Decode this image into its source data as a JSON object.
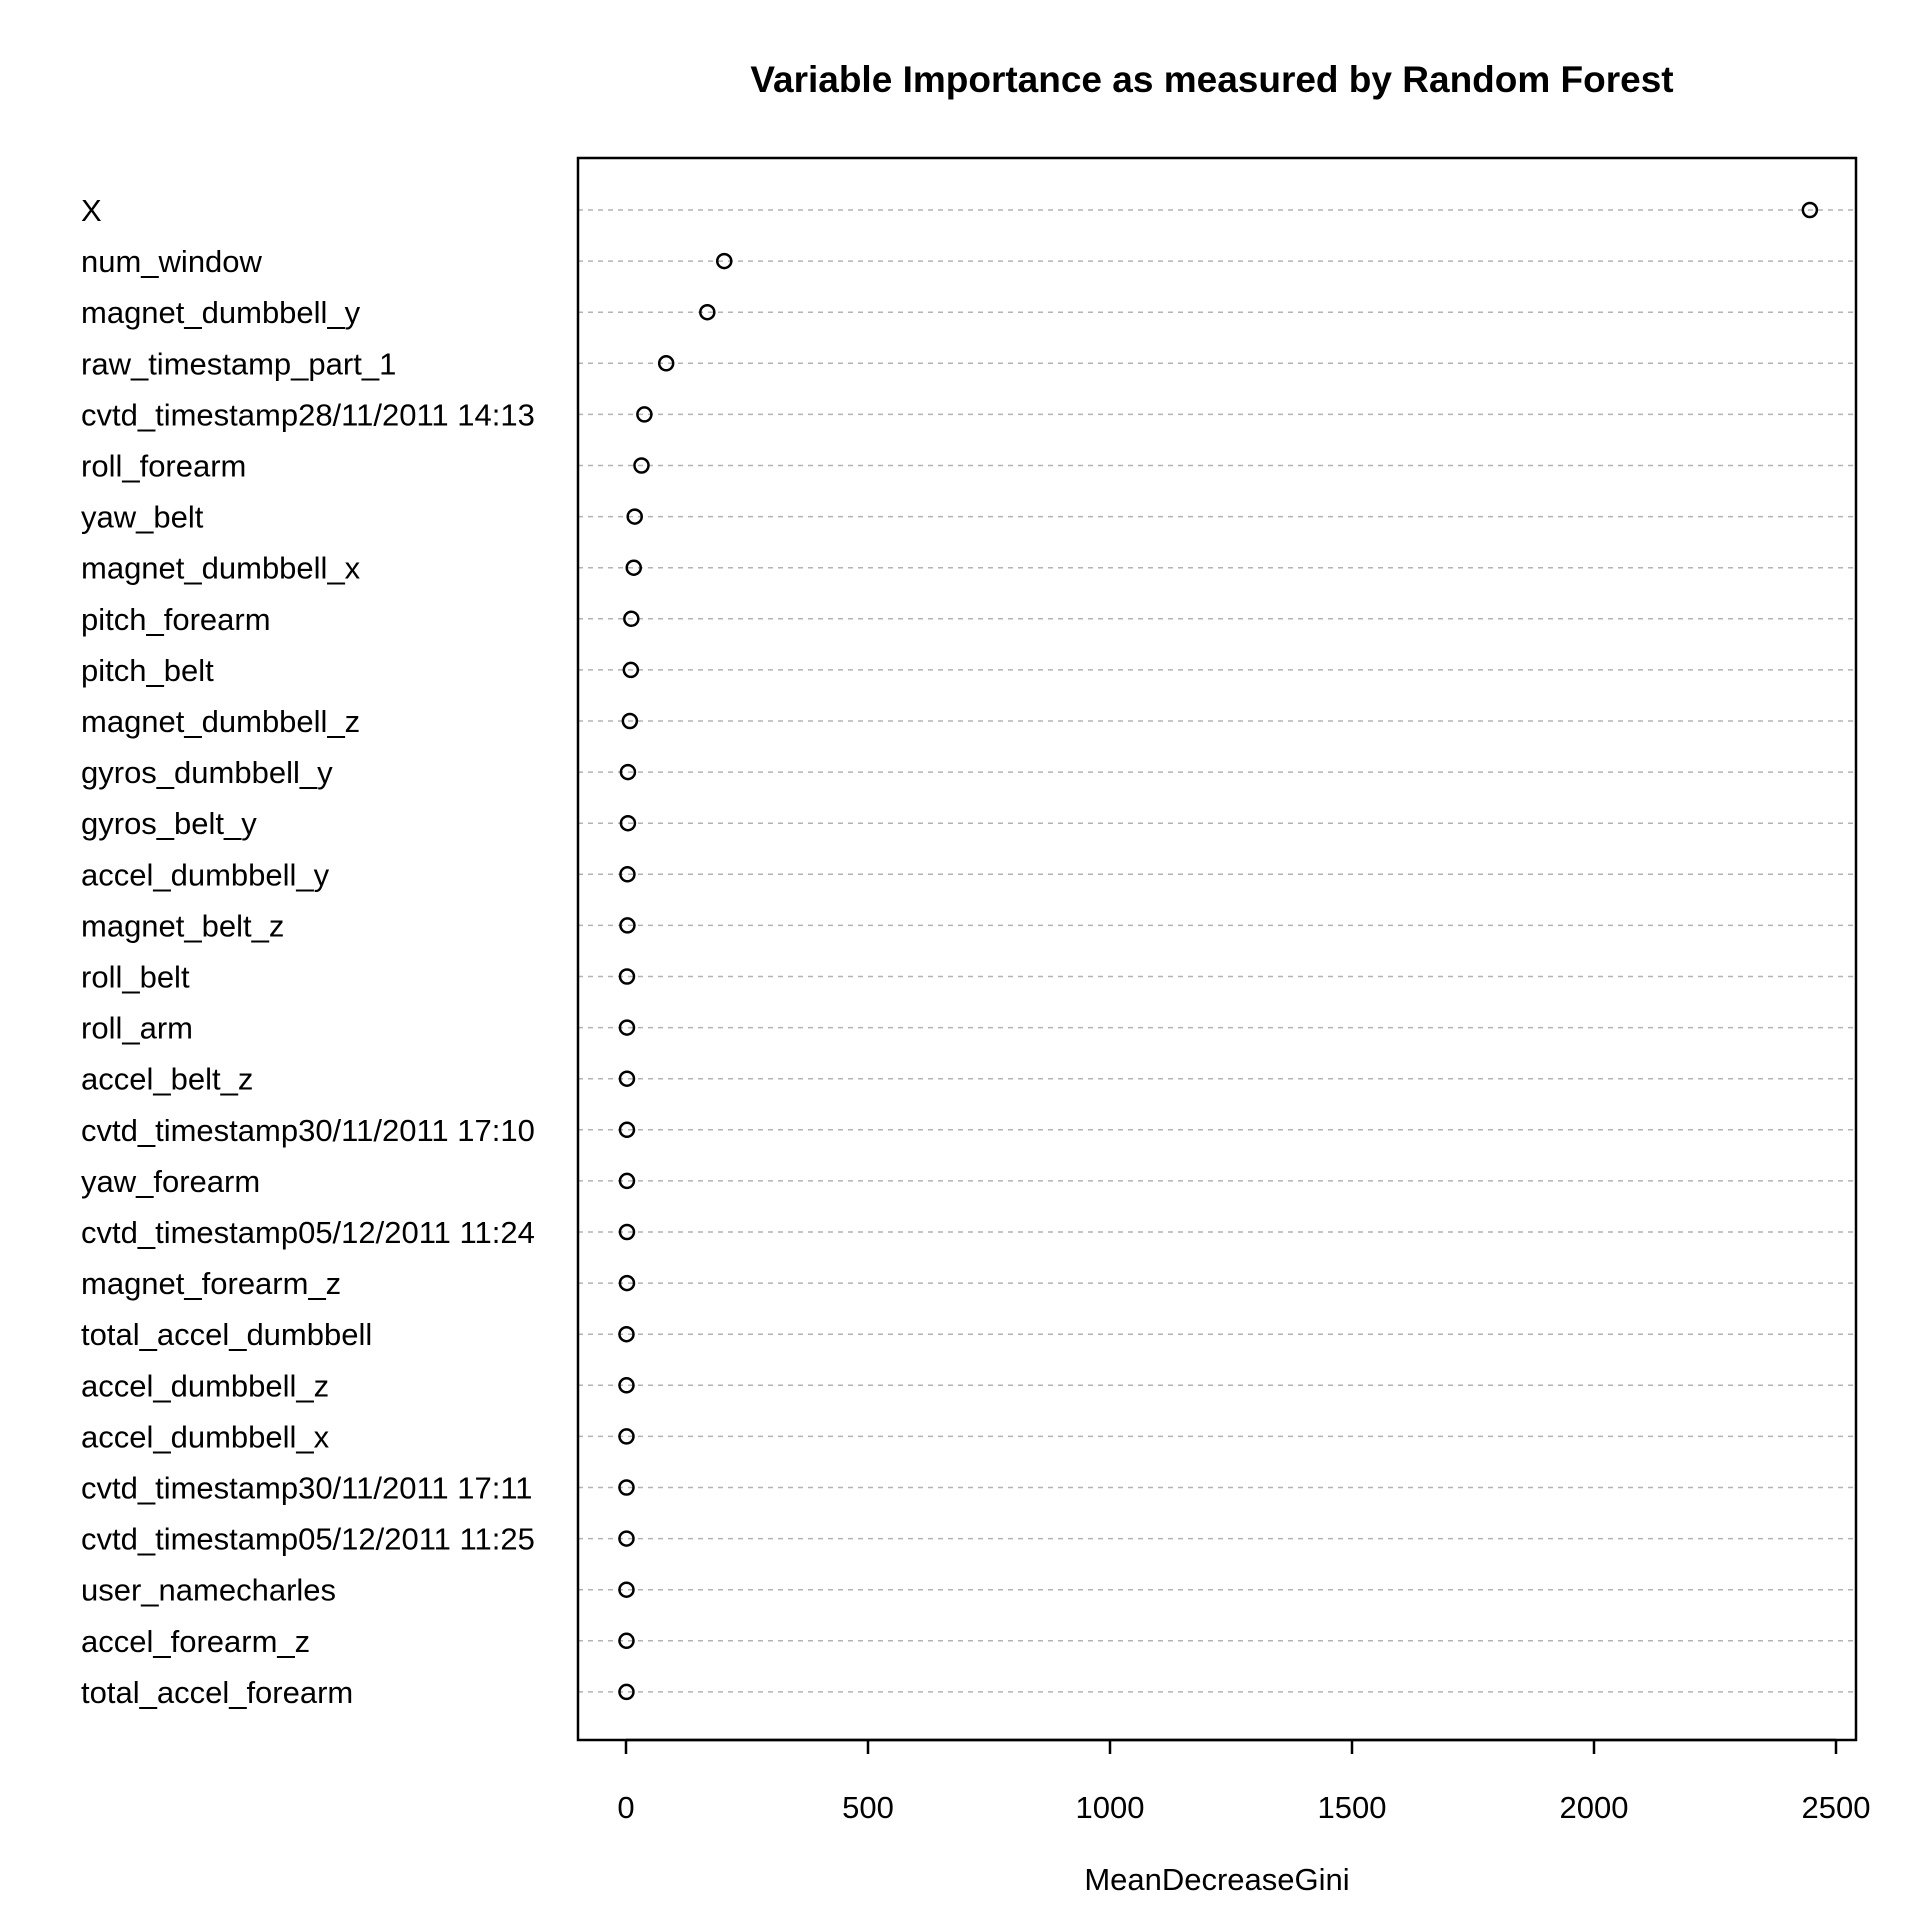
{
  "chart_data": {
    "type": "scatter",
    "title": "Variable Importance as measured by Random Forest",
    "xlabel": "MeanDecreaseGini",
    "ylabel": "",
    "xlim": [
      -100,
      2540
    ],
    "xticks": [
      0,
      500,
      1000,
      1500,
      2000,
      2500
    ],
    "grid": "horizontal-dashed",
    "legend": "none",
    "categories": [
      "X",
      "num_window",
      "magnet_dumbbell_y",
      "raw_timestamp_part_1",
      "cvtd_timestamp28/11/2011 14:13",
      "roll_forearm",
      "yaw_belt",
      "magnet_dumbbell_x",
      "pitch_forearm",
      "pitch_belt",
      "magnet_dumbbell_z",
      "gyros_dumbbell_y",
      "gyros_belt_y",
      "accel_dumbbell_y",
      "magnet_belt_z",
      "roll_belt",
      "roll_arm",
      "accel_belt_z",
      "cvtd_timestamp30/11/2011 17:10",
      "yaw_forearm",
      "cvtd_timestamp05/12/2011 11:24",
      "magnet_forearm_z",
      "total_accel_dumbbell",
      "accel_dumbbell_z",
      "accel_dumbbell_x",
      "cvtd_timestamp30/11/2011 17:11",
      "cvtd_timestamp05/12/2011 11:25",
      "user_namecharles",
      "accel_forearm_z",
      "total_accel_forearm"
    ],
    "values": [
      2446,
      203,
      168,
      83,
      38,
      32,
      18,
      16,
      11,
      10,
      8,
      4,
      4,
      3,
      3,
      2,
      2,
      2,
      2,
      2,
      2,
      2,
      1,
      1,
      1,
      1,
      1,
      1,
      1,
      1
    ]
  }
}
